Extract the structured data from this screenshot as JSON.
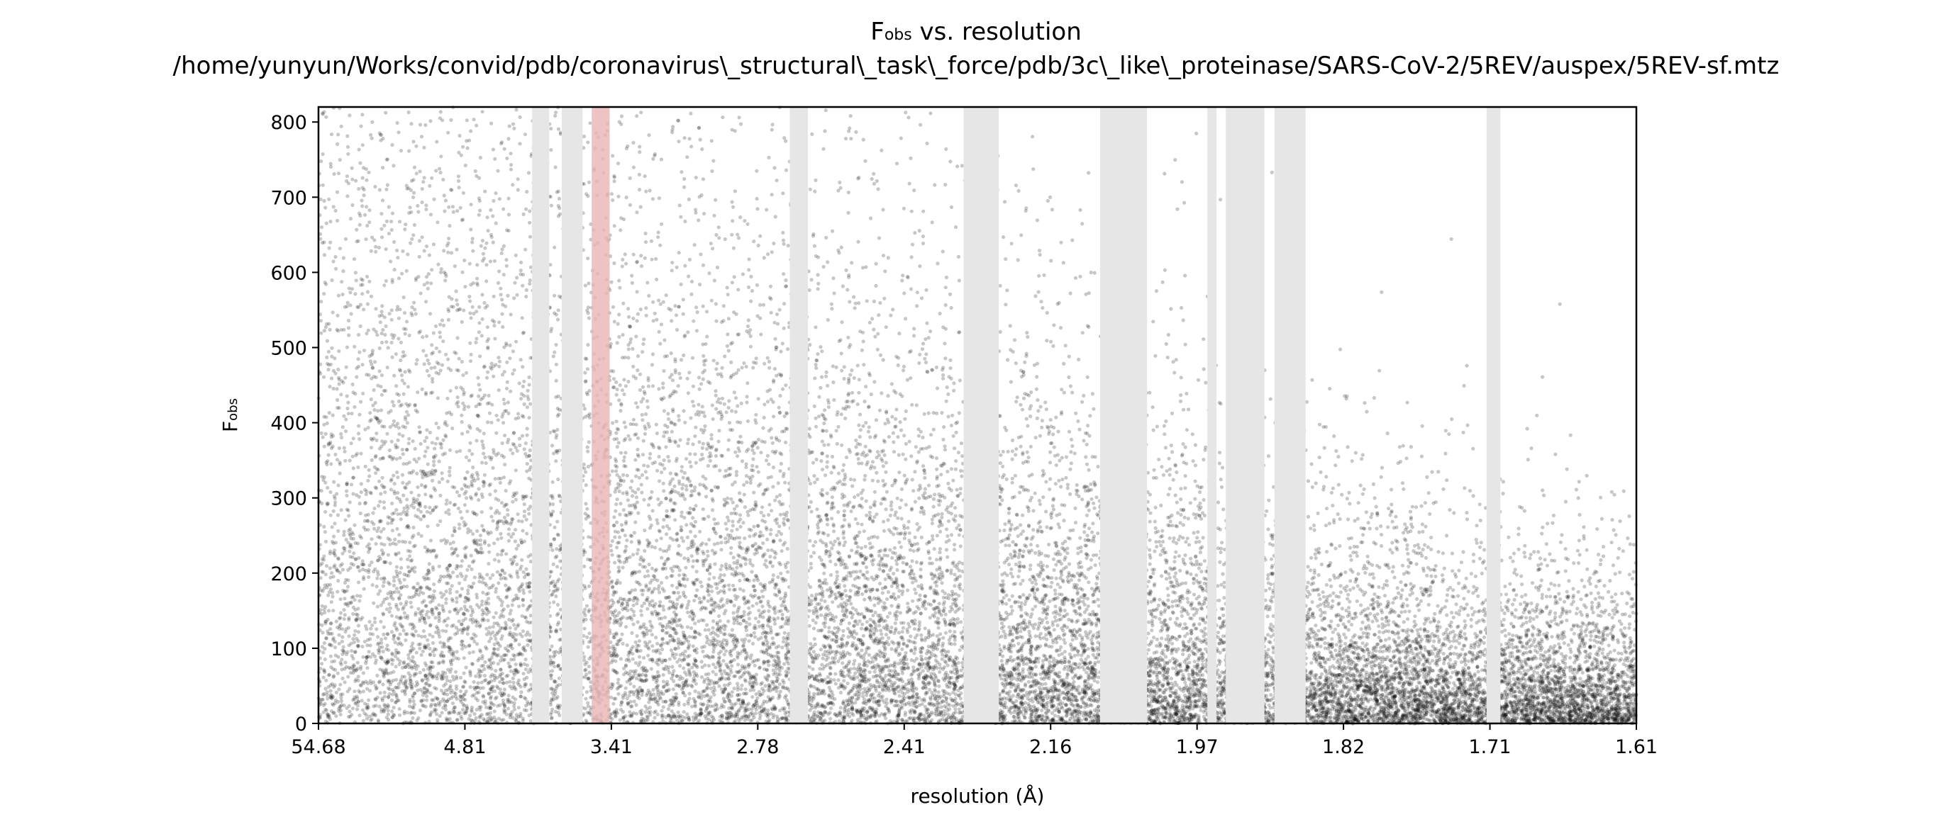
{
  "chart_data": {
    "type": "scatter",
    "title": {
      "symbol": "F",
      "subscript": "obs",
      "suffix": " vs. resolution",
      "path": "/home/yunyun/Works/convid/pdb/coronavirus\\_structural\\_task\\_force/pdb/3c\\_like\\_proteinase/SARS-CoV-2/5REV/auspex/5REV-sf.mtz"
    },
    "xlabel": "resolution (Å)",
    "ylabel": {
      "symbol": "F",
      "subscript": "obs"
    },
    "x_scale": "reciprocal-square",
    "xlim": [
      54.68,
      1.61
    ],
    "ylim": [
      0,
      820
    ],
    "x_ticks": [
      "54.68",
      "4.81",
      "3.41",
      "2.78",
      "2.41",
      "2.16",
      "1.97",
      "1.82",
      "1.71",
      "1.61"
    ],
    "y_ticks": [
      "0",
      "100",
      "200",
      "300",
      "400",
      "500",
      "600",
      "700",
      "800"
    ],
    "grid": false,
    "legend": "none",
    "point_color": "#000000",
    "point_opacity": 0.22,
    "ice_ring_color": "#e6e6e6",
    "highlight_color": "#e8b4b4",
    "ice_ring_bands": [
      [
        3.99,
        3.84
      ],
      [
        3.74,
        3.59
      ],
      [
        2.69,
        2.64
      ],
      [
        2.3,
        2.24
      ],
      [
        2.09,
        2.03
      ],
      [
        1.96,
        1.95
      ],
      [
        1.94,
        1.9
      ],
      [
        1.89,
        1.86
      ],
      [
        1.71,
        1.7
      ]
    ],
    "highlight_bands": [
      [
        3.53,
        3.42
      ]
    ],
    "distribution": {
      "n_points": 22000,
      "model": "exponential",
      "mean_curve": [
        {
          "x": 20.0,
          "mean": 390
        },
        {
          "x": 4.81,
          "mean": 360
        },
        {
          "x": 3.41,
          "mean": 300
        },
        {
          "x": 2.78,
          "mean": 240
        },
        {
          "x": 2.41,
          "mean": 190
        },
        {
          "x": 2.16,
          "mean": 150
        },
        {
          "x": 1.97,
          "mean": 115
        },
        {
          "x": 1.82,
          "mean": 85
        },
        {
          "x": 1.71,
          "mean": 68
        },
        {
          "x": 1.61,
          "mean": 58
        }
      ]
    }
  }
}
